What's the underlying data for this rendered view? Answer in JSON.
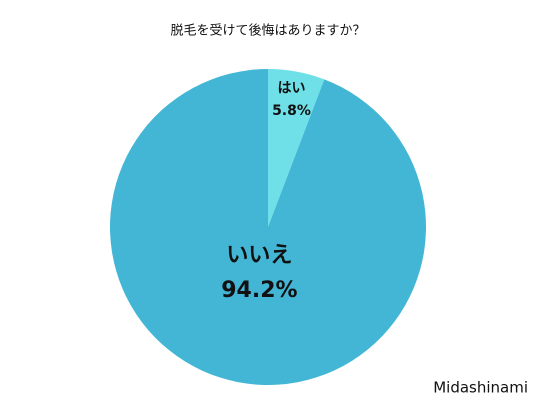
{
  "chart_data": {
    "type": "pie",
    "title": "脱毛を受けて後悔はありますか？",
    "categories": [
      "はい",
      "いいえ"
    ],
    "values": [
      5.8,
      94.2
    ],
    "value_labels": [
      "5.8%",
      "94.2%"
    ],
    "colors": [
      "#6fe0e8",
      "#43b6d6"
    ],
    "watermark": "Midashinami"
  }
}
